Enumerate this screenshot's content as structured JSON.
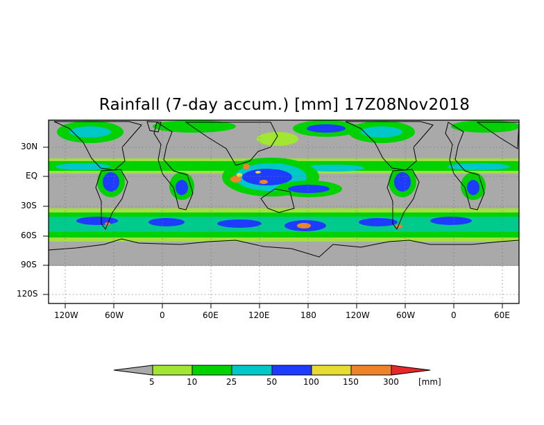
{
  "title": "Rainfall (7-day accum.) [mm] 17Z08Nov2018",
  "map": {
    "projection": "cylindrical-equidistant",
    "longitude_range_deg": [
      -150,
      80
    ],
    "latitude_range_deg": [
      -135,
      45
    ],
    "data_coverage_lat_deg": [
      -90,
      45
    ],
    "gridlines": "dotted",
    "background_color": "#a9a9a9",
    "coastline_color": "#000000"
  },
  "y_axis_ticks": [
    "30N",
    "EQ",
    "30S",
    "60S",
    "90S",
    "120S"
  ],
  "x_axis_ticks": [
    "120W",
    "60W",
    "0",
    "60E",
    "120E",
    "180",
    "120W",
    "60W",
    "0",
    "60E"
  ],
  "legend": {
    "unit": "[mm]",
    "thresholds": [
      "5",
      "10",
      "25",
      "50",
      "100",
      "150",
      "300"
    ],
    "colors": [
      "#a9a9a9",
      "#a0e632",
      "#00d200",
      "#00c8c8",
      "#1e3cff",
      "#e6dc32",
      "#f08228",
      "#e62828"
    ]
  }
}
